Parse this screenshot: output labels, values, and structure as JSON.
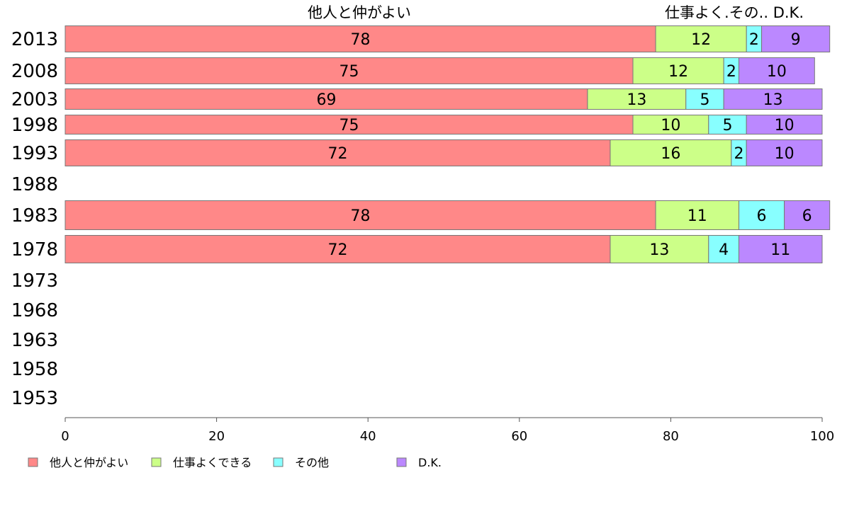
{
  "chart_data": {
    "type": "bar",
    "orientation": "horizontal",
    "stacked": true,
    "categories": [
      "2013",
      "2008",
      "2003",
      "1998",
      "1993",
      "1988",
      "1983",
      "1978",
      "1973",
      "1968",
      "1963",
      "1958",
      "1953"
    ],
    "series": [
      {
        "name": "他人と仲がよい",
        "color": "#ff8888",
        "values": [
          78,
          75,
          69,
          75,
          72,
          null,
          78,
          72,
          null,
          null,
          null,
          null,
          null
        ]
      },
      {
        "name": "仕事よくできる",
        "color": "#ccff88",
        "values": [
          12,
          12,
          13,
          10,
          16,
          null,
          11,
          13,
          null,
          null,
          null,
          null,
          null
        ]
      },
      {
        "name": "その他",
        "color": "#88ffff",
        "values": [
          2,
          2,
          5,
          5,
          2,
          null,
          6,
          4,
          null,
          null,
          null,
          null,
          null
        ]
      },
      {
        "name": "D.K.",
        "color": "#bb88ff",
        "values": [
          9,
          10,
          13,
          10,
          10,
          null,
          6,
          11,
          null,
          null,
          null,
          null,
          null
        ]
      }
    ],
    "top_labels": [
      "他人と仲がよい",
      "仕事よく.その.. D.K."
    ],
    "xlim": [
      0,
      100
    ],
    "xticks": [
      "0",
      "20",
      "40",
      "60",
      "80",
      "100"
    ],
    "legend_position": "bottom-left",
    "grid": false
  }
}
